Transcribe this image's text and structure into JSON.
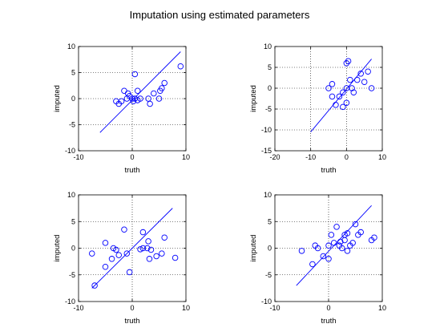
{
  "figure": {
    "title": "Imputation using estimated parameters"
  },
  "colors": {
    "marker": "#0000ff",
    "line": "#0000ff",
    "axes": "#000000",
    "grid": "#000000"
  },
  "chart_data": [
    {
      "type": "scatter",
      "xlabel": "truth",
      "ylabel": "imputed",
      "xlim": [
        -10,
        10
      ],
      "ylim": [
        -10,
        10
      ],
      "xticks": [
        -10,
        0,
        10
      ],
      "yticks": [
        -10,
        -5,
        0,
        5,
        10
      ],
      "grid": true,
      "fit_line": {
        "x": [
          -6,
          9
        ],
        "y": [
          -6.5,
          9
        ]
      },
      "points": [
        [
          -3,
          -0.5
        ],
        [
          -2.5,
          -1
        ],
        [
          -2,
          -0.5
        ],
        [
          -1.5,
          1.5
        ],
        [
          -1,
          0
        ],
        [
          -0.8,
          1
        ],
        [
          -0.5,
          0.5
        ],
        [
          0,
          0
        ],
        [
          0.2,
          -0.5
        ],
        [
          0.5,
          4.7
        ],
        [
          0.5,
          0
        ],
        [
          1,
          1.5
        ],
        [
          1,
          -0.3
        ],
        [
          1.5,
          0
        ],
        [
          3,
          0
        ],
        [
          3.3,
          -1
        ],
        [
          4,
          1
        ],
        [
          5,
          0
        ],
        [
          5.2,
          1.5
        ],
        [
          5.5,
          2
        ],
        [
          6,
          3
        ],
        [
          9,
          6.2
        ]
      ]
    },
    {
      "type": "scatter",
      "xlabel": "truth",
      "ylabel": "imputed",
      "xlim": [
        -20,
        10
      ],
      "ylim": [
        -15,
        10
      ],
      "xticks": [
        -20,
        -10,
        0,
        10
      ],
      "yticks": [
        -15,
        -10,
        -5,
        0,
        5,
        10
      ],
      "grid": true,
      "fit_line": {
        "x": [
          -10,
          7
        ],
        "y": [
          -10.5,
          7
        ]
      },
      "points": [
        [
          -5,
          0
        ],
        [
          -4,
          -2
        ],
        [
          -4,
          1
        ],
        [
          -3,
          -4
        ],
        [
          -2,
          -2
        ],
        [
          -1,
          -1
        ],
        [
          -1,
          -4.5
        ],
        [
          0,
          -3.5
        ],
        [
          0,
          6
        ],
        [
          0,
          0
        ],
        [
          0.5,
          6.5
        ],
        [
          1,
          2
        ],
        [
          1.5,
          0
        ],
        [
          2,
          -1
        ],
        [
          3,
          2
        ],
        [
          4,
          3.5
        ],
        [
          5,
          1.5
        ],
        [
          6,
          4
        ],
        [
          7,
          0
        ]
      ]
    },
    {
      "type": "scatter",
      "xlabel": "truth",
      "ylabel": "imputed",
      "xlim": [
        -10,
        10
      ],
      "ylim": [
        -10,
        10
      ],
      "xticks": [
        -10,
        0,
        10
      ],
      "yticks": [
        -10,
        -5,
        0,
        5,
        10
      ],
      "grid": true,
      "fit_line": {
        "x": [
          -7.5,
          7.5
        ],
        "y": [
          -7.5,
          7.5
        ]
      },
      "points": [
        [
          -7.5,
          -1
        ],
        [
          -7,
          -7
        ],
        [
          -5,
          1
        ],
        [
          -5,
          -3.5
        ],
        [
          -3.8,
          -2
        ],
        [
          -3.5,
          0
        ],
        [
          -3,
          -0.3
        ],
        [
          -2.5,
          -1.3
        ],
        [
          -1.5,
          3.5
        ],
        [
          -1,
          -1
        ],
        [
          -0.5,
          -4.5
        ],
        [
          1.5,
          -0.2
        ],
        [
          2,
          0
        ],
        [
          2,
          3
        ],
        [
          2.8,
          0
        ],
        [
          3,
          1.3
        ],
        [
          3.2,
          -2
        ],
        [
          3.5,
          -0.3
        ],
        [
          4.5,
          -1.5
        ],
        [
          5.5,
          -1
        ],
        [
          6,
          2
        ],
        [
          8,
          -1.8
        ]
      ]
    },
    {
      "type": "scatter",
      "xlabel": "truth",
      "ylabel": "imputed",
      "xlim": [
        -10,
        10
      ],
      "ylim": [
        -10,
        10
      ],
      "xticks": [
        -10,
        0,
        10
      ],
      "yticks": [
        -10,
        -5,
        0,
        5,
        10
      ],
      "grid": true,
      "fit_line": {
        "x": [
          -6,
          8
        ],
        "y": [
          -7,
          8
        ]
      },
      "points": [
        [
          -5,
          -0.5
        ],
        [
          -3,
          -3
        ],
        [
          -2.5,
          0.5
        ],
        [
          -2,
          0
        ],
        [
          -1,
          -1.5
        ],
        [
          0,
          -2
        ],
        [
          0,
          0.5
        ],
        [
          0.5,
          2.5
        ],
        [
          1,
          1
        ],
        [
          1.5,
          4
        ],
        [
          2,
          0.5
        ],
        [
          2.2,
          1.2
        ],
        [
          2.5,
          0
        ],
        [
          3,
          1.5
        ],
        [
          3,
          2.5
        ],
        [
          3.5,
          2.8
        ],
        [
          3.5,
          -0.5
        ],
        [
          4,
          0.5
        ],
        [
          4.5,
          1
        ],
        [
          5,
          4.5
        ],
        [
          5.5,
          2.5
        ],
        [
          6,
          3
        ],
        [
          8,
          1.5
        ],
        [
          8.5,
          2
        ]
      ]
    }
  ]
}
